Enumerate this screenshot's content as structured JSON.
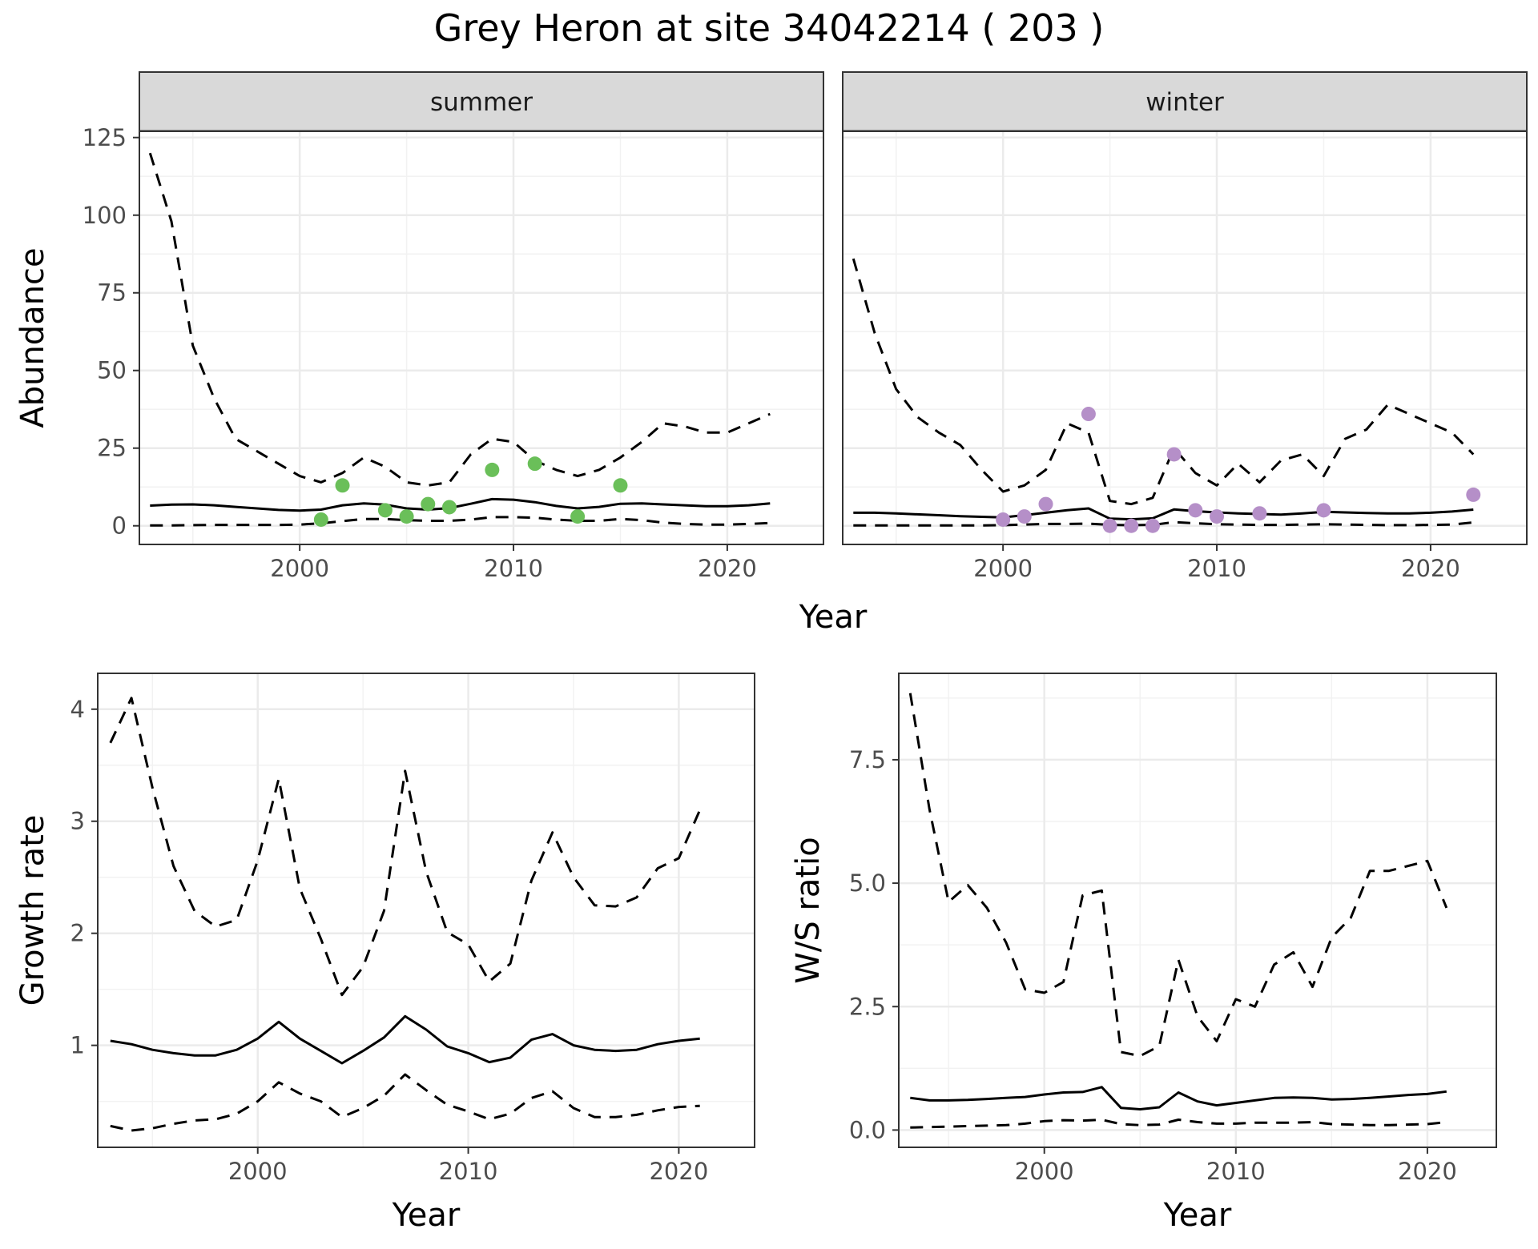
{
  "title": "Grey Heron at site 34042214 ( 203 )",
  "chart_data": [
    {
      "panel": "summer",
      "type": "line",
      "strip_label": "summer",
      "xlabel": "",
      "ylabel": "Abundance",
      "xlim": [
        1992.5,
        2024.5
      ],
      "ylim": [
        -6,
        127
      ],
      "x_ticks": [
        2000,
        2010,
        2020
      ],
      "y_ticks": [
        0,
        25,
        50,
        75,
        100,
        125
      ],
      "grid": true,
      "point_color": "#6abf59",
      "series": [
        {
          "role": "fit",
          "style": "solid",
          "x": [
            1993,
            1994,
            1995,
            1996,
            1997,
            1998,
            1999,
            2000,
            2001,
            2002,
            2003,
            2004,
            2005,
            2006,
            2007,
            2008,
            2009,
            2010,
            2011,
            2012,
            2013,
            2014,
            2015,
            2016,
            2017,
            2018,
            2019,
            2020,
            2021,
            2022
          ],
          "y": [
            6.5,
            6.8,
            6.9,
            6.6,
            6.1,
            5.6,
            5.1,
            4.9,
            5.2,
            6.6,
            7.2,
            6.8,
            5.6,
            5.2,
            5.7,
            7.1,
            8.6,
            8.4,
            7.6,
            6.4,
            5.6,
            6.1,
            7.1,
            7.2,
            6.9,
            6.6,
            6.3,
            6.3,
            6.6,
            7.2
          ]
        },
        {
          "role": "upper",
          "style": "dashed",
          "x": [
            1993,
            1994,
            1995,
            1996,
            1997,
            1998,
            1999,
            2000,
            2001,
            2002,
            2003,
            2004,
            2005,
            2006,
            2007,
            2008,
            2009,
            2010,
            2011,
            2012,
            2013,
            2014,
            2015,
            2016,
            2017,
            2018,
            2019,
            2020,
            2021,
            2022
          ],
          "y": [
            120,
            98,
            58,
            41,
            28,
            24,
            20,
            16,
            14,
            17,
            22,
            19,
            14,
            13,
            14,
            23,
            28,
            27,
            21,
            18,
            16,
            18,
            22,
            27,
            33,
            32,
            30,
            30,
            33,
            36
          ]
        },
        {
          "role": "lower",
          "style": "dashed",
          "x": [
            1993,
            1994,
            1995,
            1996,
            1997,
            1998,
            1999,
            2000,
            2001,
            2002,
            2003,
            2004,
            2005,
            2006,
            2007,
            2008,
            2009,
            2010,
            2011,
            2012,
            2013,
            2014,
            2015,
            2016,
            2017,
            2018,
            2019,
            2020,
            2021,
            2022
          ],
          "y": [
            0.1,
            0.1,
            0.2,
            0.3,
            0.3,
            0.3,
            0.3,
            0.4,
            0.8,
            1.5,
            2.2,
            2.2,
            1.8,
            1.6,
            1.6,
            2.0,
            2.8,
            2.8,
            2.6,
            2.0,
            1.6,
            1.6,
            2.2,
            1.8,
            1.0,
            0.6,
            0.4,
            0.4,
            0.6,
            0.9
          ]
        },
        {
          "role": "observed",
          "style": "points",
          "x": [
            2001,
            2002,
            2004,
            2005,
            2006,
            2007,
            2009,
            2011,
            2013,
            2015
          ],
          "y": [
            2,
            13,
            5,
            3,
            7,
            6,
            18,
            20,
            3,
            13
          ]
        }
      ]
    },
    {
      "panel": "winter",
      "type": "line",
      "strip_label": "winter",
      "xlabel": "",
      "ylabel": "",
      "xlim": [
        1992.5,
        2024.5
      ],
      "ylim": [
        -6,
        127
      ],
      "x_ticks": [
        2000,
        2010,
        2020
      ],
      "y_ticks": [
        0,
        25,
        50,
        75,
        100,
        125
      ],
      "grid": true,
      "point_color": "#b58fc8",
      "series": [
        {
          "role": "fit",
          "style": "solid",
          "x": [
            1993,
            1994,
            1995,
            1996,
            1997,
            1998,
            1999,
            2000,
            2001,
            2002,
            2003,
            2004,
            2005,
            2006,
            2007,
            2008,
            2009,
            2010,
            2011,
            2012,
            2013,
            2014,
            2015,
            2016,
            2017,
            2018,
            2019,
            2020,
            2021,
            2022
          ],
          "y": [
            4.2,
            4.2,
            4.0,
            3.7,
            3.4,
            3.1,
            2.9,
            2.7,
            3.4,
            4.2,
            5.0,
            5.6,
            2.3,
            2.1,
            2.4,
            5.3,
            4.7,
            4.3,
            4.0,
            3.8,
            3.6,
            4.0,
            4.5,
            4.3,
            4.1,
            4.0,
            4.0,
            4.2,
            4.6,
            5.2
          ]
        },
        {
          "role": "upper",
          "style": "dashed",
          "x": [
            1993,
            1994,
            1995,
            1996,
            1997,
            1998,
            1999,
            2000,
            2001,
            2002,
            2003,
            2004,
            2005,
            2006,
            2007,
            2008,
            2009,
            2010,
            2011,
            2012,
            2013,
            2014,
            2015,
            2016,
            2017,
            2018,
            2019,
            2020,
            2021,
            2022
          ],
          "y": [
            86,
            62,
            44,
            35,
            30,
            26,
            18,
            11,
            13,
            18,
            33,
            30,
            8,
            7,
            9,
            25,
            17,
            13,
            20,
            14,
            21,
            23,
            16,
            28,
            31,
            39,
            36,
            33,
            30,
            23
          ]
        },
        {
          "role": "lower",
          "style": "dashed",
          "x": [
            1993,
            1994,
            1995,
            1996,
            1997,
            1998,
            1999,
            2000,
            2001,
            2002,
            2003,
            2004,
            2005,
            2006,
            2007,
            2008,
            2009,
            2010,
            2011,
            2012,
            2013,
            2014,
            2015,
            2016,
            2017,
            2018,
            2019,
            2020,
            2021,
            2022
          ],
          "y": [
            0.1,
            0.1,
            0.1,
            0.1,
            0.1,
            0.1,
            0.1,
            0.2,
            0.4,
            0.6,
            0.6,
            0.7,
            0.3,
            0.2,
            0.3,
            1.2,
            0.8,
            0.5,
            0.4,
            0.3,
            0.3,
            0.4,
            0.5,
            0.4,
            0.3,
            0.2,
            0.2,
            0.3,
            0.4,
            1.1
          ]
        },
        {
          "role": "observed",
          "style": "points",
          "x": [
            2000,
            2001,
            2002,
            2004,
            2005,
            2006,
            2007,
            2008,
            2009,
            2010,
            2012,
            2015,
            2022
          ],
          "y": [
            2,
            3,
            7,
            36,
            0,
            0,
            0,
            23,
            5,
            3,
            4,
            5,
            10
          ]
        }
      ]
    },
    {
      "panel": "growth",
      "type": "line",
      "xlabel": "Year",
      "ylabel": "Growth rate",
      "xlim": [
        1992.4,
        2023.6
      ],
      "ylim": [
        0.09,
        4.32
      ],
      "x_ticks": [
        2000,
        2010,
        2020
      ],
      "y_ticks": [
        1,
        2,
        3,
        4
      ],
      "grid": true,
      "series": [
        {
          "role": "fit",
          "style": "solid",
          "x": [
            1993,
            1994,
            1995,
            1996,
            1997,
            1998,
            1999,
            2000,
            2001,
            2002,
            2003,
            2004,
            2005,
            2006,
            2007,
            2008,
            2009,
            2010,
            2011,
            2012,
            2013,
            2014,
            2015,
            2016,
            2017,
            2018,
            2019,
            2020,
            2021
          ],
          "y": [
            1.04,
            1.01,
            0.96,
            0.93,
            0.91,
            0.91,
            0.96,
            1.06,
            1.21,
            1.06,
            0.95,
            0.84,
            0.95,
            1.07,
            1.26,
            1.14,
            0.99,
            0.93,
            0.85,
            0.89,
            1.05,
            1.1,
            1.0,
            0.96,
            0.95,
            0.96,
            1.01,
            1.04,
            1.06
          ]
        },
        {
          "role": "upper",
          "style": "dashed",
          "x": [
            1993,
            1994,
            1995,
            1996,
            1997,
            1998,
            1999,
            2000,
            2001,
            2002,
            2003,
            2004,
            2005,
            2006,
            2007,
            2008,
            2009,
            2010,
            2011,
            2012,
            2013,
            2014,
            2015,
            2016,
            2017,
            2018,
            2019,
            2020,
            2021
          ],
          "y": [
            3.7,
            4.1,
            3.3,
            2.6,
            2.2,
            2.06,
            2.12,
            2.65,
            3.38,
            2.4,
            1.95,
            1.45,
            1.7,
            2.2,
            3.45,
            2.55,
            2.01,
            1.9,
            1.57,
            1.73,
            2.47,
            2.9,
            2.5,
            2.25,
            2.24,
            2.32,
            2.58,
            2.67,
            3.1
          ]
        },
        {
          "role": "lower",
          "style": "dashed",
          "x": [
            1993,
            1994,
            1995,
            1996,
            1997,
            1998,
            1999,
            2000,
            2001,
            2002,
            2003,
            2004,
            2005,
            2006,
            2007,
            2008,
            2009,
            2010,
            2011,
            2012,
            2013,
            2014,
            2015,
            2016,
            2017,
            2018,
            2019,
            2020,
            2021
          ],
          "y": [
            0.28,
            0.24,
            0.26,
            0.3,
            0.33,
            0.34,
            0.39,
            0.5,
            0.67,
            0.57,
            0.5,
            0.36,
            0.44,
            0.55,
            0.74,
            0.6,
            0.47,
            0.41,
            0.34,
            0.39,
            0.53,
            0.59,
            0.44,
            0.36,
            0.36,
            0.38,
            0.42,
            0.45,
            0.46
          ]
        }
      ]
    },
    {
      "panel": "ws_ratio",
      "type": "line",
      "xlabel": "Year",
      "ylabel": "W/S ratio",
      "xlim": [
        1992.4,
        2023.6
      ],
      "ylim": [
        -0.35,
        9.25
      ],
      "x_ticks": [
        2000,
        2010,
        2020
      ],
      "y_ticks": [
        0.0,
        2.5,
        5.0,
        7.5
      ],
      "y_tick_labels": [
        "0.0",
        "2.5",
        "5.0",
        "7.5"
      ],
      "grid": true,
      "series": [
        {
          "role": "fit",
          "style": "solid",
          "x": [
            1993,
            1994,
            1995,
            1996,
            1997,
            1998,
            1999,
            2000,
            2001,
            2002,
            2003,
            2004,
            2005,
            2006,
            2007,
            2008,
            2009,
            2010,
            2011,
            2012,
            2013,
            2014,
            2015,
            2016,
            2017,
            2018,
            2019,
            2020,
            2021
          ],
          "y": [
            0.65,
            0.6,
            0.6,
            0.61,
            0.63,
            0.65,
            0.67,
            0.72,
            0.76,
            0.77,
            0.87,
            0.45,
            0.42,
            0.46,
            0.76,
            0.58,
            0.5,
            0.55,
            0.6,
            0.65,
            0.66,
            0.65,
            0.62,
            0.63,
            0.65,
            0.68,
            0.71,
            0.73,
            0.78
          ]
        },
        {
          "role": "upper",
          "style": "dashed",
          "x": [
            1993,
            1994,
            1995,
            1996,
            1997,
            1998,
            1999,
            2000,
            2001,
            2002,
            2003,
            2004,
            2005,
            2006,
            2007,
            2008,
            2009,
            2010,
            2011,
            2012,
            2013,
            2014,
            2015,
            2016,
            2017,
            2018,
            2019,
            2020,
            2021
          ],
          "y": [
            8.85,
            6.5,
            4.62,
            4.96,
            4.5,
            3.8,
            2.85,
            2.78,
            3.0,
            4.75,
            4.85,
            1.58,
            1.5,
            1.7,
            3.45,
            2.3,
            1.8,
            2.65,
            2.5,
            3.35,
            3.6,
            2.9,
            3.9,
            4.3,
            5.25,
            5.25,
            5.35,
            5.45,
            4.5
          ]
        },
        {
          "role": "lower",
          "style": "dashed",
          "x": [
            1993,
            1994,
            1995,
            1996,
            1997,
            1998,
            1999,
            2000,
            2001,
            2002,
            2003,
            2004,
            2005,
            2006,
            2007,
            2008,
            2009,
            2010,
            2011,
            2012,
            2013,
            2014,
            2015,
            2016,
            2017,
            2018,
            2019,
            2020,
            2021
          ],
          "y": [
            0.05,
            0.06,
            0.07,
            0.08,
            0.09,
            0.1,
            0.13,
            0.18,
            0.2,
            0.19,
            0.21,
            0.12,
            0.1,
            0.11,
            0.21,
            0.16,
            0.13,
            0.13,
            0.15,
            0.15,
            0.15,
            0.16,
            0.12,
            0.11,
            0.1,
            0.1,
            0.11,
            0.12,
            0.16
          ]
        }
      ]
    }
  ],
  "shared_xlabel_top": "Year"
}
